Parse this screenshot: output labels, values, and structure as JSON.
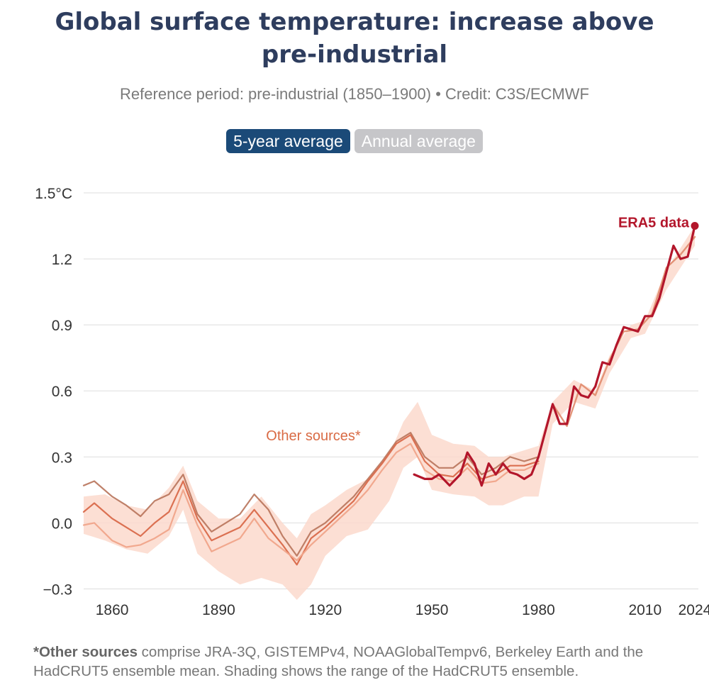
{
  "title_line1": "Global surface temperature: increase above",
  "title_line2": "pre-industrial",
  "subtitle": "Reference period: pre-industrial (1850–1900) • Credit: C3S/ECMWF",
  "toggles": {
    "active": "5-year average",
    "inactive": "Annual average"
  },
  "footnote": {
    "bold": "*Other sources",
    "text": " comprise JRA-3Q, GISTEMPv4, NOAAGlobalTempv6, Berkeley Earth and the HadCRUT5 ensemble mean. Shading shows the range of the HadCRUT5 ensemble."
  },
  "colors": {
    "era5": "#b3162b",
    "other": "#d96b45",
    "band": "#fcd9cc",
    "title": "#2e3d5e",
    "grid": "#dddddd"
  },
  "chart_data": {
    "type": "line",
    "title": "Global surface temperature: increase above pre-industrial",
    "ylabel": "°C",
    "ylim": [
      -0.35,
      1.5
    ],
    "xlim": [
      1852,
      2025
    ],
    "y_ticks": [
      -0.3,
      0.0,
      0.3,
      0.6,
      0.9,
      1.2,
      1.5
    ],
    "y_tick_labels": [
      "−0.3",
      "0.0",
      "0.3",
      "0.6",
      "0.9",
      "1.2",
      "1.5°C"
    ],
    "x_ticks": [
      1860,
      1890,
      1920,
      1950,
      1980,
      2010,
      2024
    ],
    "x_tick_labels": [
      "1860",
      "1890",
      "1920",
      "1950",
      "1980",
      "2010",
      "2024"
    ],
    "annotations": {
      "era5": "ERA5 data",
      "other": "Other sources*"
    },
    "band": {
      "name": "HadCRUT5 ensemble range",
      "x": [
        1852,
        1858,
        1864,
        1870,
        1876,
        1880,
        1884,
        1890,
        1896,
        1902,
        1908,
        1912,
        1916,
        1920,
        1926,
        1932,
        1938,
        1942,
        1946,
        1950,
        1956,
        1962,
        1966,
        1970,
        1976,
        1980,
        1984,
        1990,
        1996,
        2000,
        2006,
        2010,
        2016,
        2020,
        2024
      ],
      "upper": [
        0.12,
        0.13,
        0.08,
        0.06,
        0.16,
        0.26,
        0.1,
        0.02,
        0.02,
        0.12,
        0.0,
        -0.07,
        0.04,
        0.08,
        0.15,
        0.2,
        0.31,
        0.46,
        0.55,
        0.4,
        0.36,
        0.35,
        0.3,
        0.3,
        0.33,
        0.35,
        0.55,
        0.65,
        0.6,
        0.76,
        0.9,
        0.92,
        1.15,
        1.25,
        1.35
      ],
      "lower": [
        -0.05,
        -0.08,
        -0.12,
        -0.14,
        -0.06,
        0.06,
        -0.14,
        -0.22,
        -0.28,
        -0.25,
        -0.28,
        -0.35,
        -0.28,
        -0.15,
        -0.06,
        -0.03,
        0.1,
        0.25,
        0.3,
        0.15,
        0.13,
        0.12,
        0.08,
        0.08,
        0.12,
        0.12,
        0.45,
        0.55,
        0.52,
        0.68,
        0.84,
        0.86,
        1.06,
        1.16,
        1.26
      ]
    },
    "series": [
      {
        "name": "Other sources (upper)",
        "x": [
          1852,
          1855,
          1860,
          1864,
          1868,
          1872,
          1876,
          1880,
          1884,
          1888,
          1892,
          1896,
          1900,
          1904,
          1908,
          1912,
          1916,
          1920,
          1924,
          1928,
          1932,
          1936,
          1940,
          1944,
          1948,
          1952,
          1956,
          1960,
          1964,
          1968,
          1972,
          1976,
          1980
        ],
        "values": [
          0.17,
          0.19,
          0.12,
          0.08,
          0.03,
          0.1,
          0.13,
          0.22,
          0.04,
          -0.04,
          0.0,
          0.04,
          0.13,
          0.06,
          -0.06,
          -0.15,
          -0.04,
          0.0,
          0.06,
          0.12,
          0.2,
          0.28,
          0.37,
          0.41,
          0.3,
          0.25,
          0.25,
          0.3,
          0.22,
          0.25,
          0.3,
          0.28,
          0.3
        ]
      },
      {
        "name": "Other sources (middle)",
        "x": [
          1852,
          1855,
          1860,
          1864,
          1868,
          1872,
          1876,
          1880,
          1884,
          1888,
          1892,
          1896,
          1900,
          1904,
          1908,
          1912,
          1916,
          1920,
          1924,
          1928,
          1932,
          1936,
          1940,
          1944,
          1948,
          1952,
          1956,
          1960,
          1964,
          1968,
          1972,
          1976,
          1980
        ],
        "values": [
          0.05,
          0.09,
          0.02,
          -0.02,
          -0.06,
          0.0,
          0.05,
          0.19,
          0.02,
          -0.08,
          -0.05,
          -0.02,
          0.06,
          -0.02,
          -0.1,
          -0.19,
          -0.07,
          -0.02,
          0.04,
          0.1,
          0.19,
          0.27,
          0.36,
          0.4,
          0.28,
          0.22,
          0.21,
          0.27,
          0.2,
          0.22,
          0.26,
          0.26,
          0.28
        ]
      },
      {
        "name": "Other sources (lower)",
        "x": [
          1852,
          1855,
          1860,
          1864,
          1868,
          1872,
          1876,
          1880,
          1884,
          1888,
          1892,
          1896,
          1900,
          1904,
          1908,
          1912,
          1916,
          1920,
          1924,
          1928,
          1932,
          1936,
          1940,
          1944,
          1948,
          1952,
          1956,
          1960,
          1964,
          1968,
          1972,
          1976,
          1980
        ],
        "values": [
          -0.01,
          0.0,
          -0.08,
          -0.11,
          -0.1,
          -0.07,
          -0.03,
          0.15,
          -0.01,
          -0.13,
          -0.1,
          -0.07,
          0.02,
          -0.07,
          -0.12,
          -0.17,
          -0.1,
          -0.04,
          0.02,
          0.08,
          0.15,
          0.24,
          0.32,
          0.36,
          0.24,
          0.2,
          0.19,
          0.25,
          0.18,
          0.19,
          0.24,
          0.24,
          0.27
        ]
      },
      {
        "name": "Other sources (recent)",
        "x": [
          1980,
          1984,
          1988,
          1992,
          1996,
          2000,
          2004,
          2008,
          2012,
          2016,
          2020,
          2024
        ],
        "values": [
          0.3,
          0.54,
          0.44,
          0.63,
          0.58,
          0.74,
          0.87,
          0.88,
          0.95,
          1.16,
          1.22,
          1.3
        ]
      },
      {
        "name": "ERA5 data",
        "x": [
          1945,
          1948,
          1950,
          1952,
          1955,
          1958,
          1960,
          1962,
          1964,
          1966,
          1968,
          1970,
          1972,
          1974,
          1976,
          1978,
          1980,
          1982,
          1984,
          1986,
          1988,
          1990,
          1992,
          1994,
          1996,
          1998,
          2000,
          2002,
          2004,
          2006,
          2008,
          2010,
          2012,
          2014,
          2016,
          2018,
          2020,
          2022,
          2024
        ],
        "values": [
          0.22,
          0.2,
          0.2,
          0.22,
          0.17,
          0.22,
          0.32,
          0.27,
          0.17,
          0.27,
          0.22,
          0.27,
          0.23,
          0.22,
          0.2,
          0.22,
          0.3,
          0.42,
          0.54,
          0.45,
          0.45,
          0.62,
          0.58,
          0.57,
          0.62,
          0.73,
          0.72,
          0.81,
          0.89,
          0.88,
          0.87,
          0.94,
          0.94,
          1.02,
          1.14,
          1.26,
          1.2,
          1.21,
          1.35
        ]
      }
    ]
  }
}
